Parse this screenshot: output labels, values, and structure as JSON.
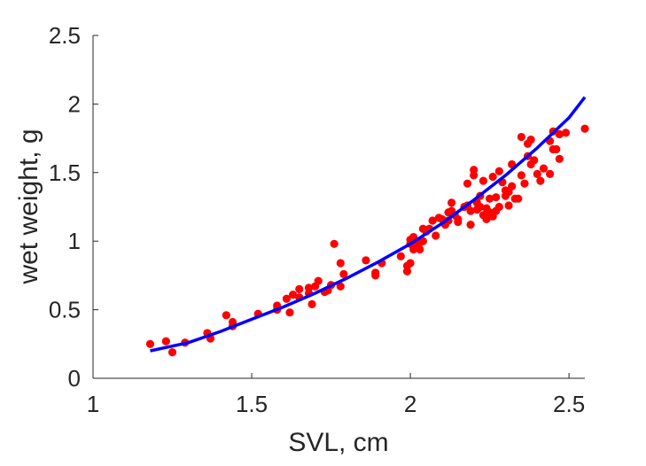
{
  "chart_data": {
    "type": "scatter",
    "title": "",
    "xlabel": "SVL, cm",
    "ylabel": "wet weight, g",
    "xlim": [
      1,
      2.55
    ],
    "ylim": [
      0,
      2.5
    ],
    "xticks": [
      "1",
      "1.5",
      "2",
      "2.5"
    ],
    "yticks": [
      "0",
      "0.5",
      "1",
      "1.5",
      "2",
      "2.5"
    ],
    "xtick_values": [
      1,
      1.5,
      2,
      2.5
    ],
    "ytick_values": [
      0,
      0.5,
      1,
      1.5,
      2,
      2.5
    ],
    "grid": false,
    "legend": "none",
    "series": [
      {
        "kind": "scatter",
        "color": "#ff0000",
        "points": [
          [
            1.18,
            0.25
          ],
          [
            1.23,
            0.27
          ],
          [
            1.25,
            0.19
          ],
          [
            1.29,
            0.26
          ],
          [
            1.36,
            0.33
          ],
          [
            1.37,
            0.29
          ],
          [
            1.42,
            0.46
          ],
          [
            1.44,
            0.41
          ],
          [
            1.44,
            0.38
          ],
          [
            1.52,
            0.47
          ],
          [
            1.58,
            0.5
          ],
          [
            1.58,
            0.53
          ],
          [
            1.61,
            0.58
          ],
          [
            1.62,
            0.48
          ],
          [
            1.63,
            0.61
          ],
          [
            1.65,
            0.59
          ],
          [
            1.65,
            0.65
          ],
          [
            1.68,
            0.62
          ],
          [
            1.68,
            0.66
          ],
          [
            1.69,
            0.54
          ],
          [
            1.7,
            0.67
          ],
          [
            1.71,
            0.71
          ],
          [
            1.73,
            0.63
          ],
          [
            1.74,
            0.64
          ],
          [
            1.75,
            0.68
          ],
          [
            1.76,
            0.98
          ],
          [
            1.78,
            0.67
          ],
          [
            1.78,
            0.84
          ],
          [
            1.79,
            0.76
          ],
          [
            1.86,
            0.86
          ],
          [
            1.89,
            0.75
          ],
          [
            1.89,
            0.77
          ],
          [
            1.91,
            0.84
          ],
          [
            1.97,
            0.89
          ],
          [
            1.99,
            0.78
          ],
          [
            1.99,
            0.82
          ],
          [
            2.0,
            0.84
          ],
          [
            2.0,
            0.98
          ],
          [
            2.0,
            1.01
          ],
          [
            2.01,
            1.03
          ],
          [
            2.01,
            0.94
          ],
          [
            2.02,
            0.97
          ],
          [
            2.03,
            0.99
          ],
          [
            2.04,
            1.0
          ],
          [
            2.03,
            0.94
          ],
          [
            2.04,
            1.09
          ],
          [
            2.05,
            1.07
          ],
          [
            2.06,
            1.09
          ],
          [
            2.07,
            1.15
          ],
          [
            2.08,
            1.04
          ],
          [
            2.09,
            1.17
          ],
          [
            2.1,
            1.16
          ],
          [
            2.11,
            1.12
          ],
          [
            2.12,
            1.21
          ],
          [
            2.12,
            1.15
          ],
          [
            2.13,
            1.22
          ],
          [
            2.13,
            1.28
          ],
          [
            2.14,
            1.19
          ],
          [
            2.15,
            1.14
          ],
          [
            2.15,
            1.16
          ],
          [
            2.17,
            1.25
          ],
          [
            2.18,
            1.42
          ],
          [
            2.18,
            1.26
          ],
          [
            2.19,
            1.22
          ],
          [
            2.19,
            1.12
          ],
          [
            2.2,
            1.48
          ],
          [
            2.2,
            1.52
          ],
          [
            2.21,
            1.23
          ],
          [
            2.21,
            1.28
          ],
          [
            2.22,
            1.25
          ],
          [
            2.22,
            1.33
          ],
          [
            2.23,
            1.44
          ],
          [
            2.23,
            1.19
          ],
          [
            2.24,
            1.24
          ],
          [
            2.24,
            1.16
          ],
          [
            2.25,
            1.31
          ],
          [
            2.25,
            1.21
          ],
          [
            2.26,
            1.18
          ],
          [
            2.26,
            1.47
          ],
          [
            2.27,
            1.32
          ],
          [
            2.27,
            1.22
          ],
          [
            2.28,
            1.51
          ],
          [
            2.28,
            1.25
          ],
          [
            2.29,
            1.43
          ],
          [
            2.3,
            1.37
          ],
          [
            2.3,
            1.33
          ],
          [
            2.31,
            1.26
          ],
          [
            2.31,
            1.36
          ],
          [
            2.32,
            1.4
          ],
          [
            2.32,
            1.56
          ],
          [
            2.33,
            1.31
          ],
          [
            2.34,
            1.31
          ],
          [
            2.35,
            1.76
          ],
          [
            2.35,
            1.48
          ],
          [
            2.36,
            1.42
          ],
          [
            2.37,
            1.62
          ],
          [
            2.37,
            1.71
          ],
          [
            2.38,
            1.74
          ],
          [
            2.38,
            1.56
          ],
          [
            2.39,
            1.59
          ],
          [
            2.4,
            1.49
          ],
          [
            2.41,
            1.44
          ],
          [
            2.42,
            1.53
          ],
          [
            2.44,
            1.73
          ],
          [
            2.44,
            1.49
          ],
          [
            2.45,
            1.8
          ],
          [
            2.45,
            1.67
          ],
          [
            2.46,
            1.67
          ],
          [
            2.47,
            1.6
          ],
          [
            2.47,
            1.78
          ],
          [
            2.49,
            1.79
          ],
          [
            2.55,
            1.82
          ]
        ]
      },
      {
        "kind": "line",
        "color": "#0000ff",
        "x": [
          1.18,
          1.3,
          1.4,
          1.5,
          1.6,
          1.7,
          1.8,
          1.9,
          2.0,
          2.1,
          2.2,
          2.3,
          2.4,
          2.5,
          2.55
        ],
        "y": [
          0.2,
          0.26,
          0.34,
          0.43,
          0.52,
          0.62,
          0.73,
          0.85,
          0.98,
          1.13,
          1.3,
          1.48,
          1.68,
          1.9,
          2.05
        ]
      }
    ]
  }
}
